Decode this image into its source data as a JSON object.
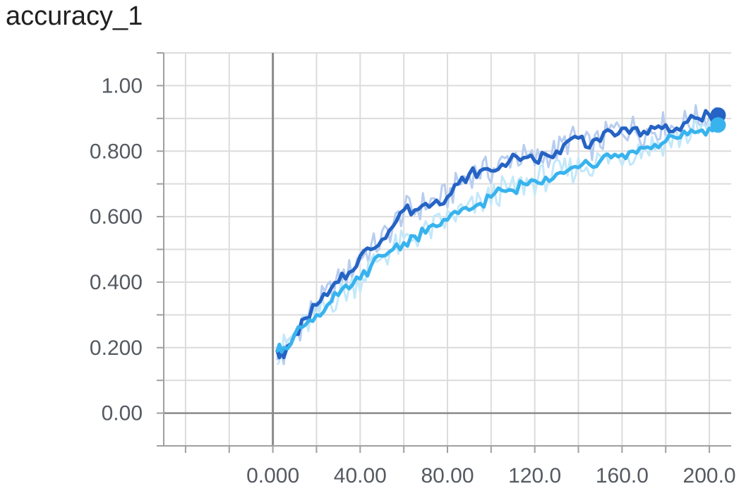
{
  "chart_data": {
    "type": "line",
    "title": "accuracy_1",
    "xlabel": "",
    "ylabel": "",
    "xlim": [
      -50,
      210
    ],
    "ylim": [
      -0.1,
      1.1
    ],
    "grid": true,
    "x_ticks": [
      0,
      40,
      80,
      120,
      160,
      200
    ],
    "x_tick_labels": [
      "0.000",
      "40.00",
      "80.00",
      "120.0",
      "160.0",
      "200.0"
    ],
    "y_ticks": [
      0.0,
      0.2,
      0.4,
      0.6,
      0.8,
      1.0
    ],
    "y_tick_labels": [
      "0.00",
      "0.200",
      "0.400",
      "0.600",
      "0.800",
      "1.00"
    ],
    "series": [
      {
        "color": "#2563c4",
        "raw_color": "#b7cdf0",
        "x": [
          2,
          5,
          10,
          15,
          20,
          25,
          30,
          35,
          40,
          45,
          50,
          55,
          60,
          65,
          70,
          75,
          80,
          85,
          90,
          95,
          100,
          105,
          110,
          115,
          120,
          125,
          130,
          135,
          140,
          145,
          150,
          155,
          160,
          165,
          170,
          175,
          180,
          185,
          190,
          195,
          200,
          204
        ],
        "values": [
          0.19,
          0.17,
          0.24,
          0.29,
          0.33,
          0.36,
          0.4,
          0.43,
          0.48,
          0.5,
          0.53,
          0.57,
          0.62,
          0.62,
          0.64,
          0.65,
          0.66,
          0.7,
          0.73,
          0.74,
          0.74,
          0.76,
          0.79,
          0.78,
          0.77,
          0.79,
          0.8,
          0.83,
          0.84,
          0.81,
          0.83,
          0.86,
          0.87,
          0.87,
          0.86,
          0.87,
          0.88,
          0.87,
          0.89,
          0.9,
          0.91,
          0.91
        ]
      },
      {
        "color": "#38b3ee",
        "raw_color": "#c3e8fa",
        "x": [
          2,
          5,
          10,
          15,
          20,
          25,
          30,
          35,
          40,
          45,
          50,
          55,
          60,
          65,
          70,
          75,
          80,
          85,
          90,
          95,
          100,
          105,
          110,
          115,
          120,
          125,
          130,
          135,
          140,
          145,
          150,
          155,
          160,
          165,
          170,
          175,
          180,
          185,
          190,
          195,
          200,
          204
        ],
        "values": [
          0.19,
          0.2,
          0.24,
          0.27,
          0.3,
          0.33,
          0.36,
          0.38,
          0.41,
          0.45,
          0.48,
          0.5,
          0.52,
          0.54,
          0.55,
          0.57,
          0.59,
          0.61,
          0.62,
          0.64,
          0.66,
          0.68,
          0.68,
          0.7,
          0.71,
          0.72,
          0.73,
          0.74,
          0.75,
          0.76,
          0.77,
          0.78,
          0.79,
          0.8,
          0.81,
          0.82,
          0.83,
          0.84,
          0.85,
          0.86,
          0.87,
          0.88
        ]
      }
    ]
  }
}
